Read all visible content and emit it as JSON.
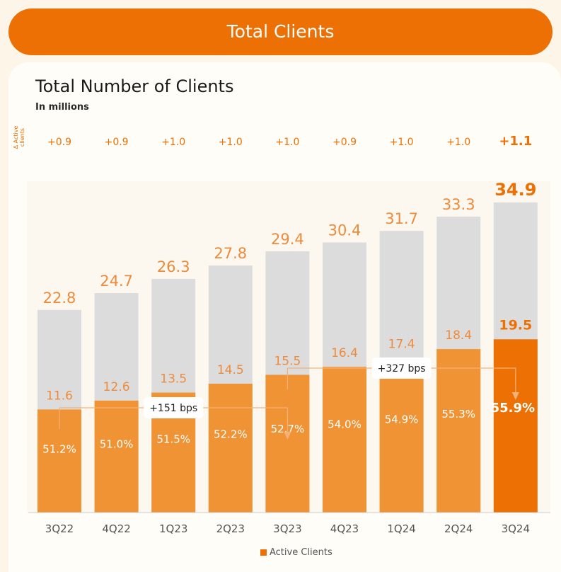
{
  "banner": {
    "title": "Total Clients"
  },
  "chart_data": {
    "type": "bar",
    "title": "Total Number of Clients",
    "subtitle": "In millions",
    "delta_row_label": "Δ Active clients",
    "categories": [
      "3Q22",
      "4Q22",
      "1Q23",
      "2Q23",
      "3Q23",
      "4Q23",
      "1Q24",
      "2Q24",
      "3Q24"
    ],
    "delta_labels": [
      "+0.9",
      "+0.9",
      "+1.0",
      "+1.0",
      "+1.0",
      "+0.9",
      "+1.0",
      "+1.0",
      "+1.1"
    ],
    "series": [
      {
        "name": "Total Clients",
        "values": [
          22.8,
          24.7,
          26.3,
          27.8,
          29.4,
          30.4,
          31.7,
          33.3,
          34.9
        ],
        "labels": [
          "22.8",
          "24.7",
          "26.3",
          "27.8",
          "29.4",
          "30.4",
          "31.7",
          "33.3",
          "34.9"
        ]
      },
      {
        "name": "Active Clients",
        "values": [
          11.6,
          12.6,
          13.5,
          14.5,
          15.5,
          16.4,
          17.4,
          18.4,
          19.5
        ],
        "labels": [
          "11.6",
          "12.6",
          "13.5",
          "14.5",
          "15.5",
          "16.4",
          "17.4",
          "18.4",
          "19.5"
        ]
      }
    ],
    "active_share_labels": [
      "51.2%",
      "51.0%",
      "51.5%",
      "52.2%",
      "52.7%",
      "54.0%",
      "54.9%",
      "55.3%",
      "55.9%"
    ],
    "annotations": [
      {
        "text": "+151 bps",
        "from": "3Q22",
        "to": "3Q23"
      },
      {
        "text": "+327 bps",
        "from": "3Q23",
        "to": "3Q24"
      }
    ],
    "legend": {
      "label": "Active Clients",
      "position": "bottom"
    },
    "highlight_category": "3Q24",
    "ylim": [
      0,
      35
    ],
    "grid": false,
    "colors": {
      "total": "#dcdcdc",
      "active": "#ef9335",
      "highlight": "#ec7003",
      "label": "#ef8a3a",
      "banner": "#ec7003"
    }
  }
}
